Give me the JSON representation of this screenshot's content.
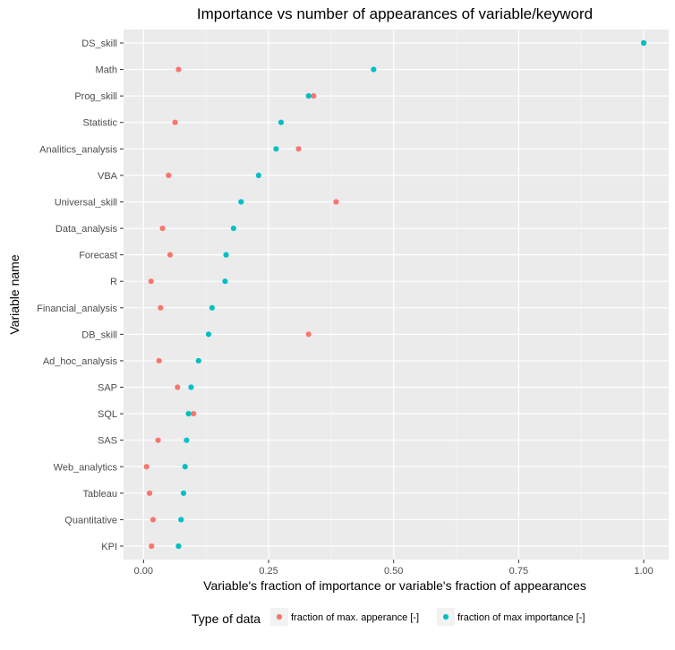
{
  "chart_data": {
    "type": "scatter",
    "title": "Importance vs number of appearances of variable/keyword",
    "xlabel": "Variable's fraction of importance or variable's fraction of appearances",
    "ylabel": "Variable name",
    "xlim": [
      -0.04,
      1.05
    ],
    "x_ticks": [
      "0.00",
      "0.25",
      "0.50",
      "0.75",
      "1.00"
    ],
    "categories": [
      "DS_skill",
      "Math",
      "Prog_skill",
      "Statistic",
      "Analitics_analysis",
      "VBA",
      "Universal_skill",
      "Data_analysis",
      "Forecast",
      "R",
      "Financial_analysis",
      "DB_skill",
      "Ad_hoc_analysis",
      "SAP",
      "SQL",
      "SAS",
      "Web_analytics",
      "Tableau",
      "Quantitative",
      "KPI"
    ],
    "series": [
      {
        "name": "fraction of max. apperance [-]",
        "color": "#f8766d",
        "values": [
          1.0,
          0.07,
          0.34,
          0.063,
          0.31,
          0.05,
          0.385,
          0.038,
          0.053,
          0.015,
          0.034,
          0.33,
          0.031,
          0.068,
          0.1,
          0.029,
          0.006,
          0.012,
          0.019,
          0.016
        ]
      },
      {
        "name": "fraction of max importance [-]",
        "color": "#00bfc4",
        "values": [
          1.0,
          0.46,
          0.33,
          0.275,
          0.265,
          0.23,
          0.195,
          0.18,
          0.165,
          0.163,
          0.137,
          0.13,
          0.11,
          0.095,
          0.09,
          0.086,
          0.083,
          0.08,
          0.075,
          0.07
        ]
      }
    ],
    "legend": {
      "title": "Type of data",
      "position": "bottom"
    },
    "grid": true
  }
}
